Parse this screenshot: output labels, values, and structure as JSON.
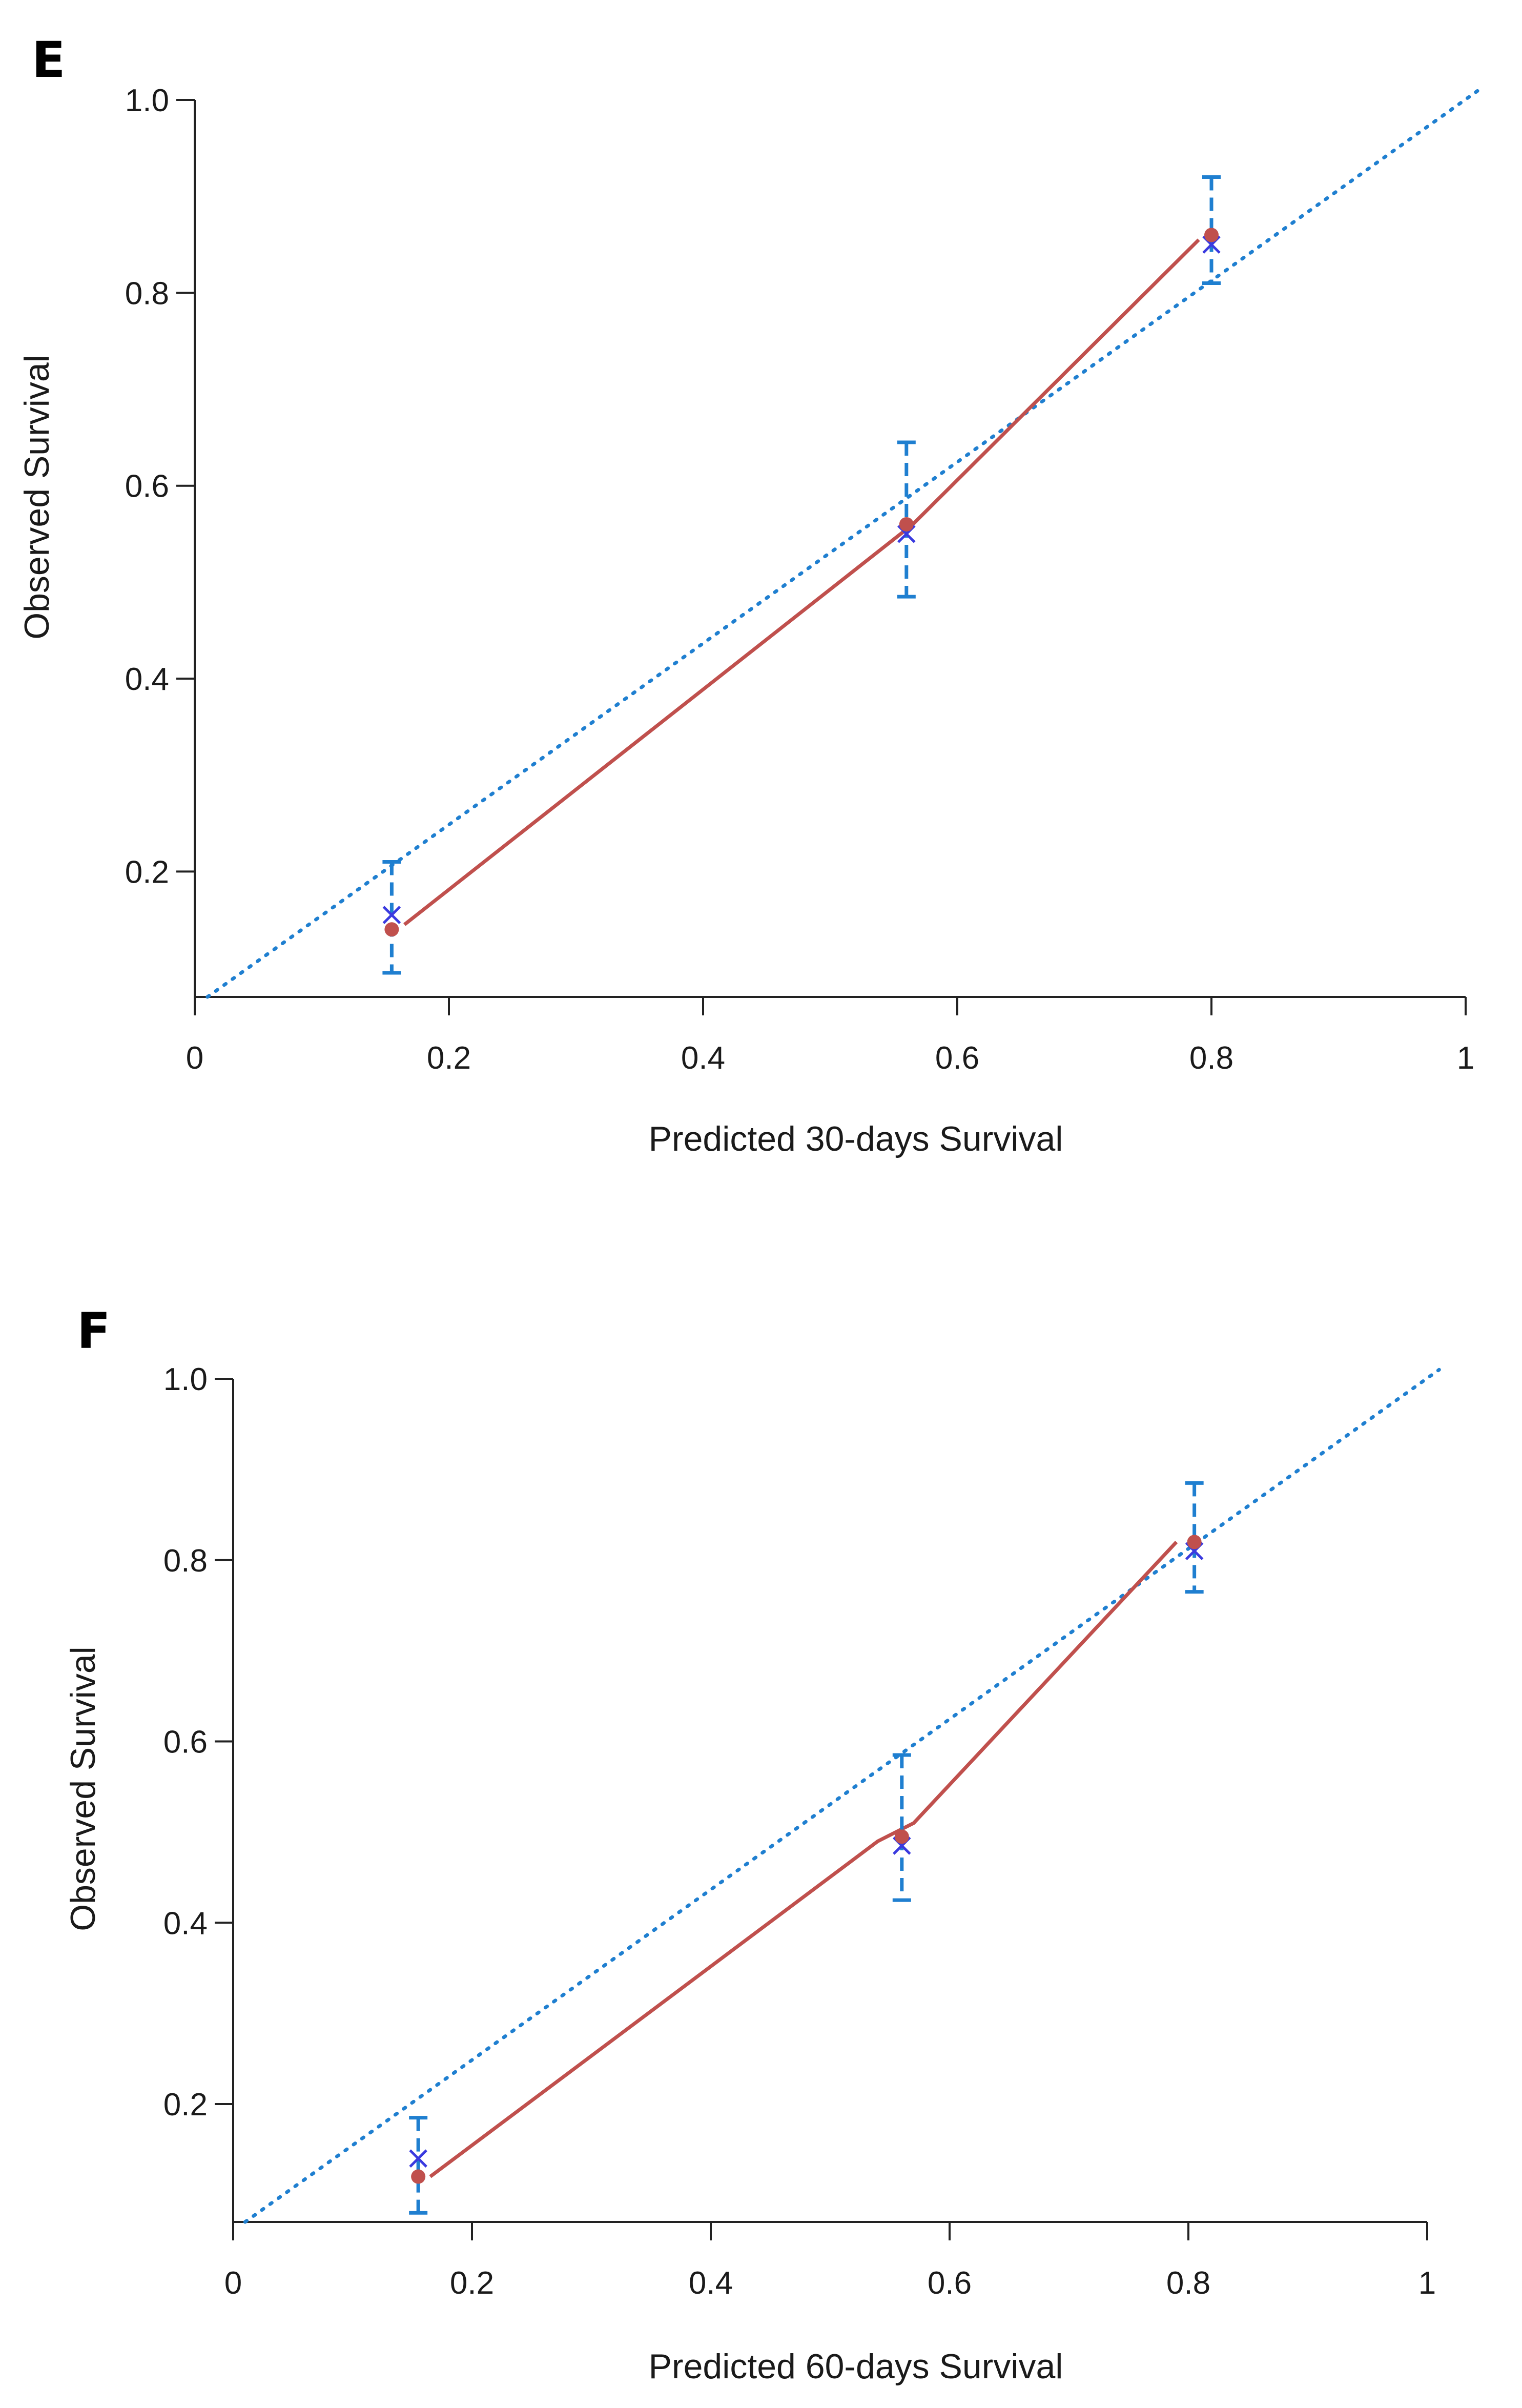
{
  "panels": [
    {
      "label": "E",
      "chart_data": {
        "type": "scatter",
        "title": "",
        "xlabel": "Predicted 30-days Survival",
        "ylabel": "Observed Survival",
        "xlim": [
          0,
          1
        ],
        "ylim": [
          0.07,
          1.0
        ],
        "x_ticks": [
          "0",
          "0.2",
          "0.4",
          "0.6",
          "0.8",
          "1"
        ],
        "x_tick_values": [
          0,
          0.2,
          0.4,
          0.6,
          0.8,
          1
        ],
        "y_ticks": [
          "0.2",
          "0.4",
          "0.6",
          "0.8",
          "1.0"
        ],
        "y_tick_values": [
          0.2,
          0.4,
          0.6,
          0.8,
          1.0
        ],
        "grid": false,
        "reference_line": {
          "style": "dotted",
          "color": "#1f7fd0",
          "x": [
            0.01,
            1.01
          ],
          "y": [
            0.07,
            1.01
          ]
        },
        "calibration_line": {
          "style": "solid",
          "color": "#c0504d",
          "x": [
            0.165,
            0.565,
            0.79
          ],
          "y": [
            0.145,
            0.56,
            0.855
          ]
        },
        "points": [
          {
            "x": 0.155,
            "observed": 0.14,
            "expected": 0.155,
            "ci_low": 0.095,
            "ci_high": 0.21
          },
          {
            "x": 0.56,
            "observed": 0.56,
            "expected": 0.55,
            "ci_low": 0.485,
            "ci_high": 0.645
          },
          {
            "x": 0.8,
            "observed": 0.86,
            "expected": 0.85,
            "ci_low": 0.81,
            "ci_high": 0.92
          }
        ],
        "colors": {
          "observed_point": "#c0504d",
          "expected_marker": "#3a3adf",
          "error_bar": "#1f7fd0"
        }
      }
    },
    {
      "label": "F",
      "chart_data": {
        "type": "scatter",
        "title": "",
        "xlabel": "Predicted 60-days Survival",
        "ylabel": "Observed Survival",
        "xlim": [
          0,
          1
        ],
        "ylim": [
          0.07,
          1.0
        ],
        "x_ticks": [
          "0",
          "0.2",
          "0.4",
          "0.6",
          "0.8",
          "1"
        ],
        "x_tick_values": [
          0,
          0.2,
          0.4,
          0.6,
          0.8,
          1
        ],
        "y_ticks": [
          "0.2",
          "0.4",
          "0.6",
          "0.8",
          "1.0"
        ],
        "y_tick_values": [
          0.2,
          0.4,
          0.6,
          0.8,
          1.0
        ],
        "grid": false,
        "reference_line": {
          "style": "dotted",
          "color": "#1f7fd0",
          "x": [
            0.01,
            1.01
          ],
          "y": [
            0.07,
            1.01
          ]
        },
        "calibration_line": {
          "style": "solid",
          "color": "#c0504d",
          "x": [
            0.165,
            0.54,
            0.57,
            0.79
          ],
          "y": [
            0.12,
            0.49,
            0.51,
            0.82
          ]
        },
        "points": [
          {
            "x": 0.155,
            "observed": 0.12,
            "expected": 0.14,
            "ci_low": 0.08,
            "ci_high": 0.185
          },
          {
            "x": 0.56,
            "observed": 0.495,
            "expected": 0.485,
            "ci_low": 0.425,
            "ci_high": 0.585
          },
          {
            "x": 0.805,
            "observed": 0.82,
            "expected": 0.81,
            "ci_low": 0.765,
            "ci_high": 0.885
          }
        ],
        "colors": {
          "observed_point": "#c0504d",
          "expected_marker": "#3a3adf",
          "error_bar": "#1f7fd0"
        }
      }
    }
  ]
}
